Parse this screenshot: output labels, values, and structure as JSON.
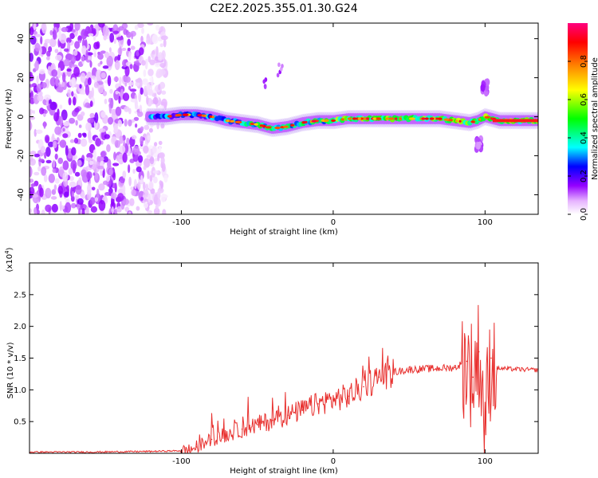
{
  "title": "C2E2.2025.355.01.30.G24",
  "chart_data": [
    {
      "type": "heatmap",
      "title": "C2E2.2025.355.01.30.G24",
      "xlabel": "Height of straight line (km)",
      "ylabel": "Frequency (Hz)",
      "xlim": [
        -200,
        135
      ],
      "ylim": [
        -50,
        48
      ],
      "x_ticks": [
        -100,
        0,
        100
      ],
      "x_tick_labels": [
        "-100",
        "0",
        "100"
      ],
      "y_ticks": [
        -40,
        -20,
        0,
        20,
        40
      ],
      "y_tick_labels": [
        "-40",
        "-20",
        "0",
        "20",
        "40"
      ],
      "colorbar": {
        "label": "Normalized spectral amplitude",
        "range": [
          0,
          1
        ],
        "ticks": [
          0.0,
          0.2,
          0.4,
          0.6,
          0.8
        ],
        "tick_labels": [
          "0.0",
          "0.2",
          "0.4",
          "0.6",
          "0.8"
        ],
        "colors": [
          "#ffffff",
          "#e6b3ff",
          "#9400ff",
          "#0000ff",
          "#00ffff",
          "#00ff00",
          "#ffff00",
          "#ff8000",
          "#ff0000",
          "#ff007f"
        ]
      },
      "ridge": {
        "name": "Frequency ridge",
        "x": [
          -120,
          -110,
          -100,
          -90,
          -80,
          -70,
          -60,
          -50,
          -40,
          -30,
          -20,
          -10,
          0,
          10,
          20,
          30,
          40,
          50,
          60,
          70,
          80,
          90,
          95,
          100,
          105,
          110,
          120,
          135
        ],
        "y": [
          0,
          0,
          1,
          1,
          0,
          -2,
          -3,
          -4,
          -6,
          -5,
          -3,
          -2,
          -2,
          -1,
          -1,
          -1,
          -1,
          -1,
          -1,
          -1,
          -2,
          -3,
          -2,
          0,
          -1,
          -2,
          -2,
          -2
        ]
      },
      "scatter_region": {
        "x_range": [
          -200,
          -110
        ],
        "y_range": [
          -50,
          48
        ],
        "amplitude": "low-moderate"
      },
      "features": [
        {
          "x": -45,
          "y": 17,
          "label": "streak"
        },
        {
          "x": -35,
          "y": 24,
          "label": "streak"
        },
        {
          "x": 100,
          "y": 15,
          "label": "burst"
        },
        {
          "x": 96,
          "y": -14,
          "label": "burst"
        }
      ]
    },
    {
      "type": "line",
      "xlabel": "Height of straight line (km)",
      "ylabel": "SNR (10 * v/v)",
      "y_multiplier": "(x10^4)",
      "y_multiplier_base": "(x10",
      "y_multiplier_exp": "4",
      "y_multiplier_close": ")",
      "xlim": [
        -200,
        135
      ],
      "ylim": [
        0,
        3.0
      ],
      "x_ticks": [
        -100,
        0,
        100
      ],
      "x_tick_labels": [
        "-100",
        "0",
        "100"
      ],
      "y_ticks": [
        0.5,
        1.0,
        1.5,
        2.0,
        2.5
      ],
      "y_tick_labels": [
        "0.5",
        "1.0",
        "1.5",
        "2.0",
        "2.5"
      ],
      "series": [
        {
          "name": "SNR",
          "color": "#e8302e",
          "x": [
            -200,
            -160,
            -120,
            -100,
            -95,
            -90,
            -80,
            -70,
            -60,
            -50,
            -40,
            -30,
            -20,
            -10,
            0,
            10,
            20,
            30,
            40,
            50,
            60,
            70,
            80,
            88,
            92,
            96,
            100,
            104,
            108,
            115,
            125,
            135
          ],
          "y": [
            0.02,
            0.02,
            0.03,
            0.04,
            0.05,
            0.1,
            0.22,
            0.3,
            0.38,
            0.45,
            0.52,
            0.6,
            0.68,
            0.78,
            0.85,
            0.9,
            1.05,
            1.2,
            1.28,
            1.32,
            1.33,
            1.34,
            1.35,
            1.45,
            1.2,
            1.6,
            0.5,
            1.5,
            1.34,
            1.33,
            1.32,
            1.31
          ]
        }
      ]
    }
  ]
}
